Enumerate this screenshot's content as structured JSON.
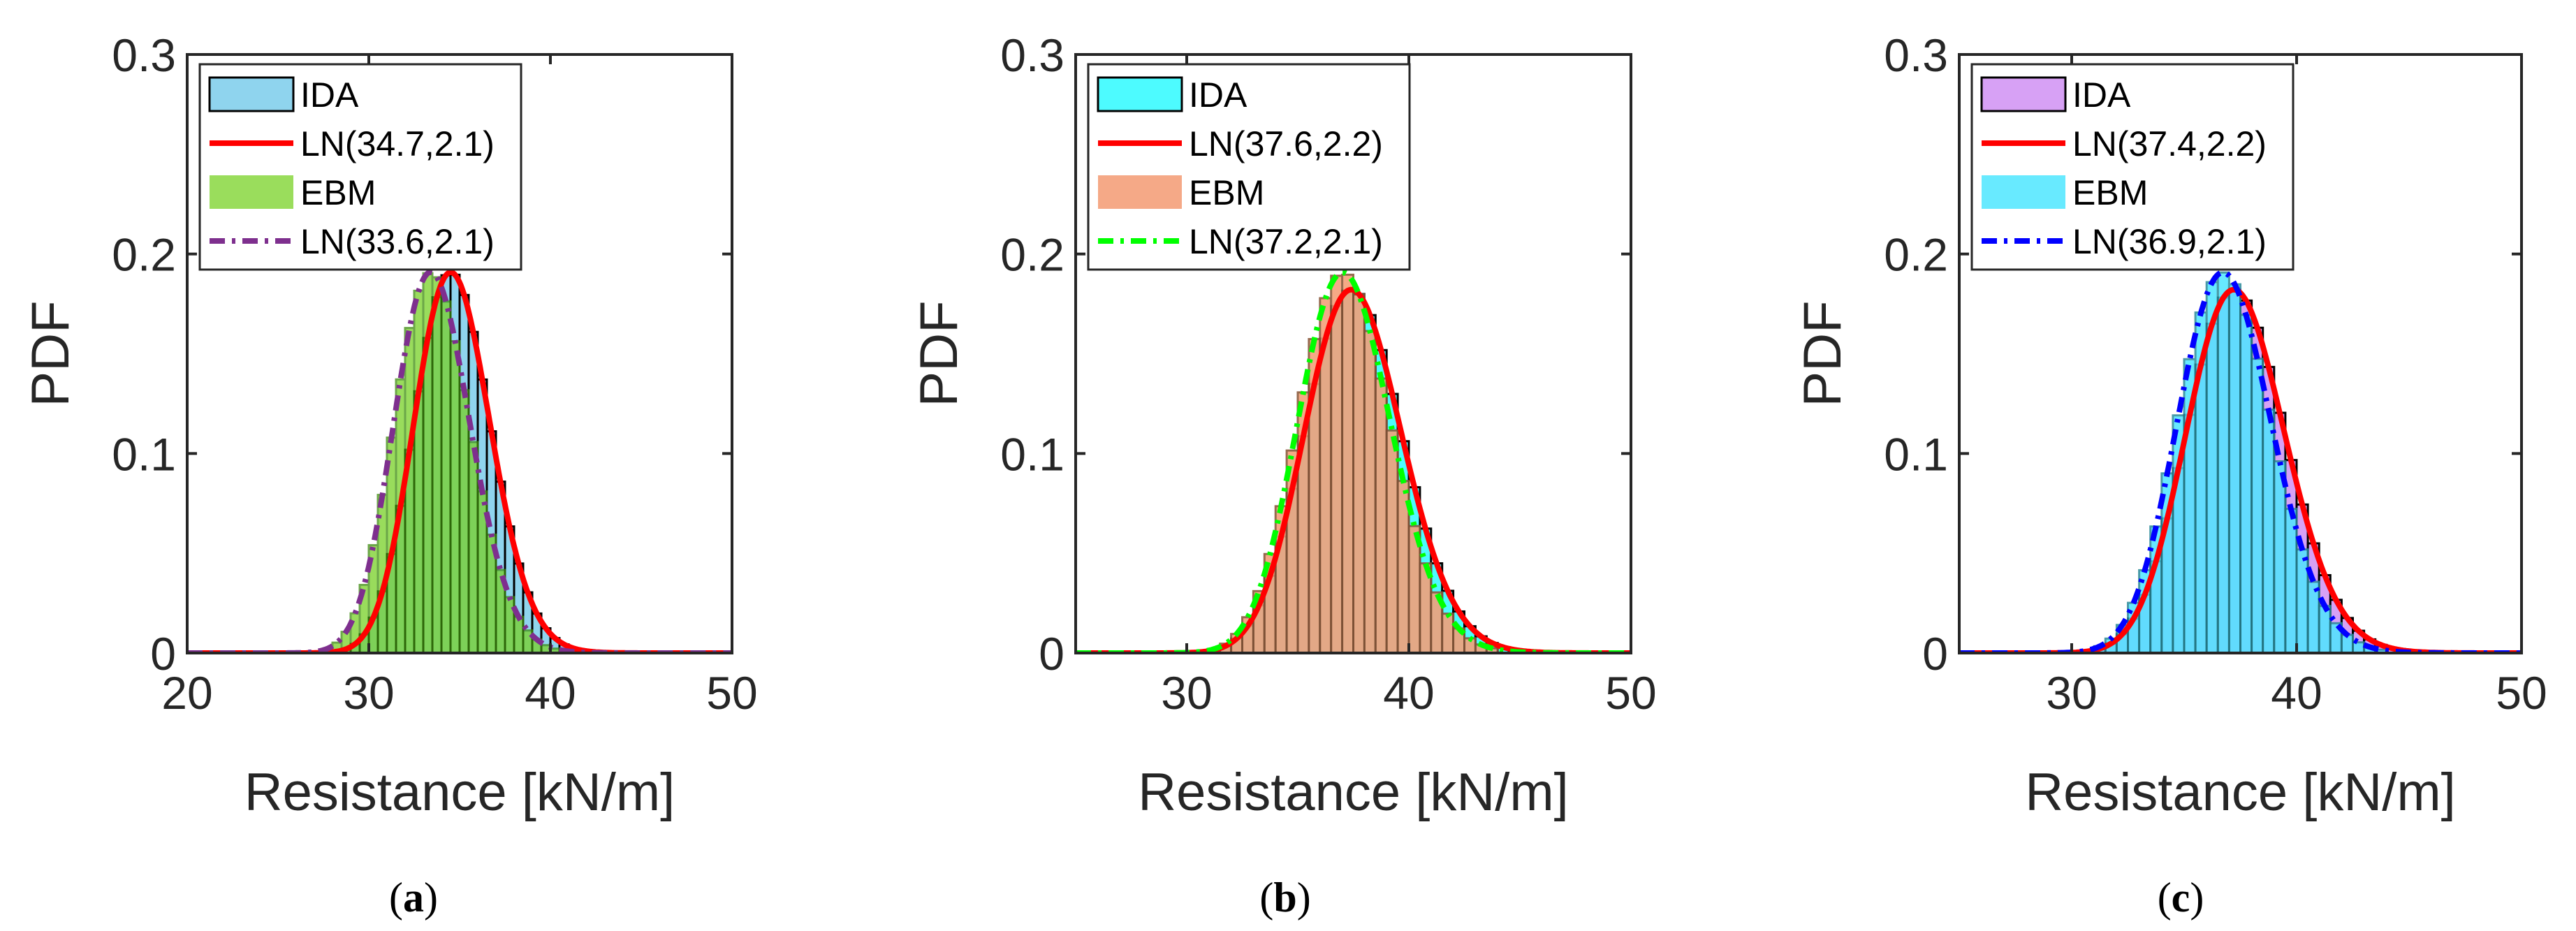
{
  "chart_data": [
    {
      "type": "histogram",
      "panel": "a",
      "caption_letter": "a",
      "xlabel": "Resistance [kN/m]",
      "ylabel": "PDF",
      "xlim": [
        20,
        50
      ],
      "ylim": [
        0,
        0.3
      ],
      "xticks": [
        20,
        30,
        40,
        50
      ],
      "yticks": [
        0,
        0.1,
        0.2,
        0.3
      ],
      "xtick_labels": [
        "20",
        "30",
        "40",
        "50"
      ],
      "ytick_labels": [
        "0",
        "0.1",
        "0.2",
        "0.3"
      ],
      "legend_position": "top-left",
      "series": [
        {
          "name": "IDA",
          "kind": "hist",
          "mean": 34.7,
          "sd": 2.1,
          "bin_width": 0.5,
          "range": [
            27.5,
            42.5
          ],
          "fill": "#8fd4ee",
          "edge": "#000000"
        },
        {
          "name": "LN(34.7,2.1)",
          "kind": "lognormal",
          "mean": 34.7,
          "sd": 2.1,
          "color": "#ff0000",
          "dash": "solid"
        },
        {
          "name": "EBM",
          "kind": "hist",
          "mean": 33.6,
          "sd": 2.1,
          "bin_width": 0.5,
          "range": [
            27.5,
            40.5
          ],
          "fill": "#78d126",
          "edge": "#3c8a0d",
          "opacity": 0.75
        },
        {
          "name": "LN(33.6,2.1)",
          "kind": "lognormal",
          "mean": 33.6,
          "sd": 2.1,
          "color": "#7e2f8e",
          "dash": "dashdot"
        }
      ]
    },
    {
      "type": "histogram",
      "panel": "b",
      "caption_letter": "b",
      "xlabel": "Resistance [kN/m]",
      "ylabel": "PDF",
      "xlim": [
        25,
        50
      ],
      "ylim": [
        0,
        0.3
      ],
      "xticks": [
        30,
        40,
        50
      ],
      "yticks": [
        0,
        0.1,
        0.2,
        0.3
      ],
      "xtick_labels": [
        "30",
        "40",
        "50"
      ],
      "ytick_labels": [
        "0",
        "0.1",
        "0.2",
        "0.3"
      ],
      "legend_position": "top-left",
      "series": [
        {
          "name": "IDA",
          "kind": "hist",
          "mean": 37.6,
          "sd": 2.2,
          "bin_width": 0.5,
          "range": [
            30.5,
            45.5
          ],
          "fill": "#4dfbff",
          "edge": "#000000"
        },
        {
          "name": "LN(37.6,2.2)",
          "kind": "lognormal",
          "mean": 37.6,
          "sd": 2.2,
          "color": "#ff0000",
          "dash": "solid"
        },
        {
          "name": "EBM",
          "kind": "hist",
          "mean": 37.2,
          "sd": 2.1,
          "bin_width": 0.5,
          "range": [
            30.5,
            44.5
          ],
          "fill": "#f4a07a",
          "edge": "#8b5a3c",
          "opacity": 0.9
        },
        {
          "name": "LN(37.2,2.1)",
          "kind": "lognormal",
          "mean": 37.2,
          "sd": 2.1,
          "color": "#00ff00",
          "dash": "dashdot"
        }
      ]
    },
    {
      "type": "histogram",
      "panel": "c",
      "caption_letter": "c",
      "xlabel": "Resistance [kN/m]",
      "ylabel": "PDF",
      "xlim": [
        25,
        50
      ],
      "ylim": [
        0,
        0.3
      ],
      "xticks": [
        30,
        40,
        50
      ],
      "yticks": [
        0,
        0.1,
        0.2,
        0.3
      ],
      "xtick_labels": [
        "30",
        "40",
        "50"
      ],
      "ytick_labels": [
        "0",
        "0.1",
        "0.2",
        "0.3"
      ],
      "legend_position": "top-left",
      "series": [
        {
          "name": "IDA",
          "kind": "hist",
          "mean": 37.4,
          "sd": 2.2,
          "bin_width": 0.5,
          "range": [
            30.5,
            45.0
          ],
          "fill": "#d7a1f5",
          "edge": "#000000"
        },
        {
          "name": "LN(37.4,2.2)",
          "kind": "lognormal",
          "mean": 37.4,
          "sd": 2.2,
          "color": "#ff0000",
          "dash": "solid"
        },
        {
          "name": "EBM",
          "kind": "hist",
          "mean": 36.9,
          "sd": 2.1,
          "bin_width": 0.5,
          "range": [
            30.5,
            44.0
          ],
          "fill": "#4de6ff",
          "edge": "#2a8a9a",
          "opacity": 0.85
        },
        {
          "name": "LN(36.9,2.1)",
          "kind": "lognormal",
          "mean": 36.9,
          "sd": 2.1,
          "color": "#0000ff",
          "dash": "dashdot"
        }
      ]
    }
  ]
}
